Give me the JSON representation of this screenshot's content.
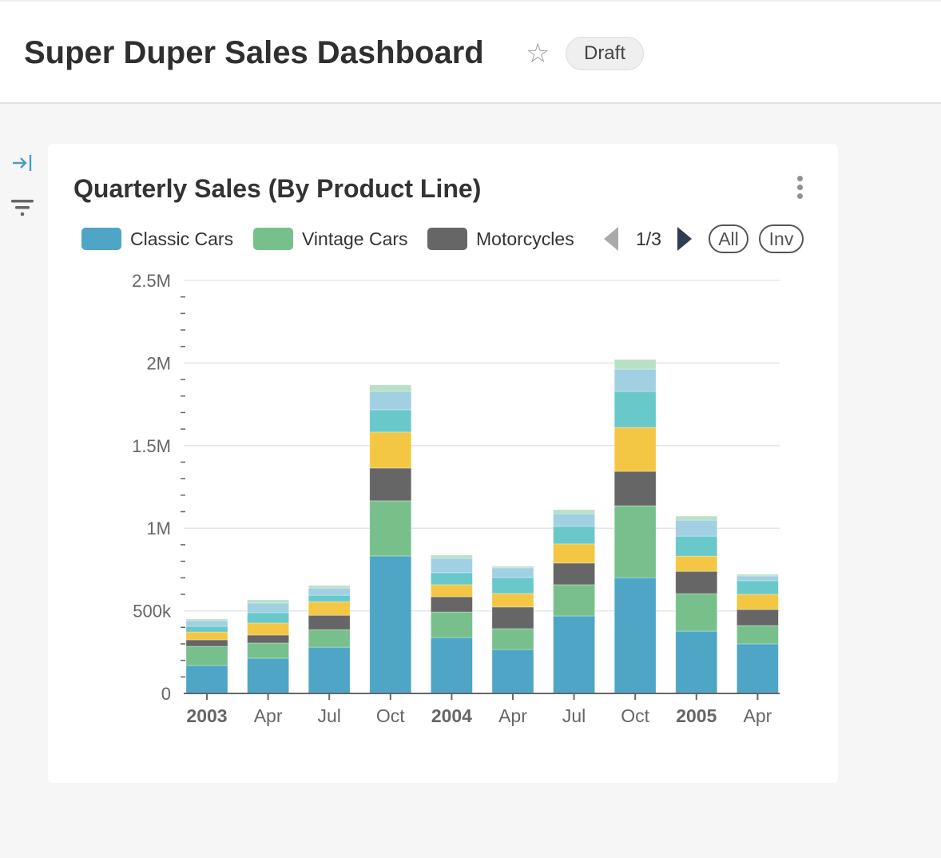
{
  "header": {
    "title": "Super Duper Sales Dashboard",
    "status_badge": "Draft",
    "star_icon": "star-outline-icon"
  },
  "sidebar": {
    "icons": [
      "collapse-arrow-icon",
      "filter-icon"
    ]
  },
  "card": {
    "title": "Quarterly Sales (By Product Line)",
    "legend_page": "1/3",
    "all_label": "All",
    "inv_label": "Inv"
  },
  "chart_data": {
    "type": "bar",
    "stacked": true,
    "title": "Quarterly Sales (By Product Line)",
    "xlabel": "",
    "ylabel": "",
    "ylim": [
      0,
      2500000
    ],
    "yticks": [
      "0",
      "500k",
      "1M",
      "1.5M",
      "2M",
      "2.5M"
    ],
    "grid": true,
    "legend_position": "top",
    "categories": [
      "2003",
      "Apr",
      "Jul",
      "Oct",
      "2004",
      "Apr",
      "Jul",
      "Oct",
      "2005",
      "Apr"
    ],
    "bold_categories": [
      "2003",
      "2004",
      "2005"
    ],
    "series": [
      {
        "name": "Classic Cars",
        "color": "#4fa5c6",
        "values": [
          169000,
          213000,
          280000,
          832000,
          338000,
          266000,
          469000,
          701000,
          377000,
          300000
        ]
      },
      {
        "name": "Vintage Cars",
        "color": "#77c08b",
        "values": [
          116000,
          92000,
          106000,
          334000,
          155000,
          126000,
          189000,
          435000,
          227000,
          111000
        ]
      },
      {
        "name": "Motorcycles",
        "color": "#666666",
        "values": [
          39000,
          48000,
          87000,
          198000,
          92000,
          131000,
          131000,
          208000,
          135000,
          97000
        ]
      },
      {
        "color": "#f3c744",
        "values": [
          48000,
          73000,
          82000,
          218000,
          73000,
          82000,
          116000,
          266000,
          92000,
          92000
        ]
      },
      {
        "color": "#69c8c9",
        "values": [
          34000,
          63000,
          39000,
          135000,
          73000,
          97000,
          106000,
          218000,
          121000,
          82000
        ]
      },
      {
        "color": "#a0d0e2",
        "values": [
          34000,
          58000,
          44000,
          111000,
          87000,
          58000,
          77000,
          135000,
          97000,
          29000
        ]
      },
      {
        "color": "#b8e0c5",
        "values": [
          10000,
          19000,
          15000,
          39000,
          19000,
          10000,
          24000,
          58000,
          24000,
          10000
        ]
      }
    ]
  }
}
